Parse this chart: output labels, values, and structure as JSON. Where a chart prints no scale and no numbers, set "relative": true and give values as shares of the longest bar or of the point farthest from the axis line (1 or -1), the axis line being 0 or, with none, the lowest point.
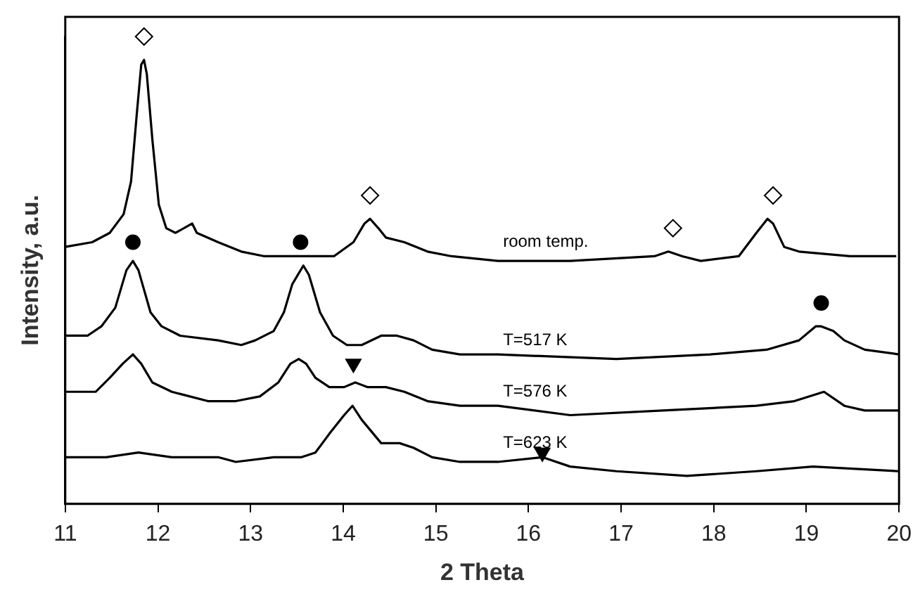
{
  "chart_data": {
    "type": "line",
    "xlabel": "2 Theta",
    "ylabel": "Intensity, a.u.",
    "relative": true,
    "xlim": [
      11,
      20
    ],
    "xticks": [
      11,
      12,
      13,
      14,
      15,
      16,
      17,
      18,
      19,
      20
    ],
    "legend": false,
    "marker": "none",
    "line_style": "solid",
    "series": [
      {
        "name": "room temp.",
        "color": "#000000",
        "x": [
          11.0,
          11.29,
          11.48,
          11.63,
          11.71,
          11.77,
          11.82,
          11.85,
          11.88,
          11.94,
          12.01,
          12.09,
          12.19,
          12.37,
          12.42,
          12.65,
          12.9,
          13.15,
          13.55,
          13.9,
          14.11,
          14.23,
          14.29,
          14.38,
          14.46,
          14.66,
          14.91,
          15.17,
          15.67,
          16.45,
          17.36,
          17.51,
          17.66,
          17.86,
          18.27,
          18.46,
          18.58,
          18.64,
          18.76,
          18.92,
          19.47,
          19.97
        ],
        "values": [
          0.55,
          0.56,
          0.58,
          0.62,
          0.69,
          0.83,
          0.94,
          0.95,
          0.92,
          0.78,
          0.64,
          0.59,
          0.58,
          0.6,
          0.58,
          0.56,
          0.54,
          0.53,
          0.53,
          0.53,
          0.56,
          0.6,
          0.61,
          0.59,
          0.57,
          0.56,
          0.54,
          0.53,
          0.52,
          0.52,
          0.53,
          0.54,
          0.53,
          0.52,
          0.53,
          0.58,
          0.61,
          0.6,
          0.55,
          0.54,
          0.53,
          0.53
        ]
      },
      {
        "name": "T=517 K",
        "color": "#000000",
        "x": [
          11.0,
          11.24,
          11.39,
          11.54,
          11.66,
          11.73,
          11.79,
          11.92,
          12.04,
          12.24,
          12.65,
          12.9,
          13.05,
          13.25,
          13.36,
          13.45,
          13.57,
          13.63,
          13.75,
          13.89,
          14.04,
          14.2,
          14.41,
          14.58,
          14.76,
          14.96,
          15.26,
          15.67,
          16.95,
          17.96,
          18.57,
          18.92,
          19.1,
          19.16,
          19.29,
          19.41,
          19.63,
          20.0
        ],
        "values": [
          0.36,
          0.36,
          0.38,
          0.42,
          0.5,
          0.52,
          0.5,
          0.41,
          0.38,
          0.36,
          0.35,
          0.34,
          0.35,
          0.37,
          0.41,
          0.47,
          0.51,
          0.49,
          0.41,
          0.36,
          0.34,
          0.34,
          0.36,
          0.36,
          0.35,
          0.33,
          0.32,
          0.32,
          0.31,
          0.32,
          0.33,
          0.35,
          0.38,
          0.38,
          0.37,
          0.35,
          0.33,
          0.32
        ]
      },
      {
        "name": "T=576 K",
        "color": "#000000",
        "x": [
          11.0,
          11.33,
          11.48,
          11.62,
          11.73,
          11.82,
          11.94,
          12.15,
          12.54,
          12.84,
          13.1,
          13.3,
          13.43,
          13.52,
          13.6,
          13.7,
          13.85,
          14.01,
          14.13,
          14.26,
          14.46,
          14.66,
          14.91,
          15.26,
          15.67,
          16.45,
          17.45,
          18.46,
          18.87,
          19.19,
          19.41,
          19.63,
          20.0
        ],
        "values": [
          0.24,
          0.24,
          0.27,
          0.3,
          0.32,
          0.3,
          0.26,
          0.24,
          0.22,
          0.22,
          0.23,
          0.26,
          0.3,
          0.31,
          0.3,
          0.27,
          0.25,
          0.25,
          0.26,
          0.25,
          0.25,
          0.24,
          0.22,
          0.21,
          0.21,
          0.19,
          0.2,
          0.21,
          0.22,
          0.24,
          0.21,
          0.2,
          0.2
        ]
      },
      {
        "name": "T=623 K",
        "color": "#000000",
        "x": [
          11.0,
          11.44,
          11.79,
          12.15,
          12.65,
          12.84,
          13.25,
          13.55,
          13.7,
          13.85,
          14.01,
          14.1,
          14.2,
          14.41,
          14.61,
          14.76,
          14.96,
          15.26,
          15.67,
          16.15,
          16.45,
          16.95,
          17.71,
          18.46,
          19.07,
          20.0
        ],
        "values": [
          0.1,
          0.1,
          0.11,
          0.1,
          0.1,
          0.09,
          0.1,
          0.1,
          0.11,
          0.15,
          0.19,
          0.21,
          0.18,
          0.13,
          0.13,
          0.12,
          0.1,
          0.09,
          0.09,
          0.1,
          0.08,
          0.07,
          0.06,
          0.07,
          0.08,
          0.07
        ]
      },
      {
        "type": "scatter",
        "marker": "diamond",
        "color": "#000000",
        "x": [
          11.85,
          14.29,
          17.56,
          18.64
        ],
        "values": [
          1.0,
          0.66,
          0.59,
          0.66
        ]
      },
      {
        "type": "scatter",
        "marker": "circle",
        "color": "#000000",
        "x": [
          11.73,
          13.54,
          19.16
        ],
        "values": [
          0.56,
          0.56,
          0.43
        ]
      },
      {
        "type": "scatter",
        "marker": "triangle",
        "color": "#000000",
        "x": [
          14.11,
          16.15
        ],
        "values": [
          0.3,
          0.11
        ]
      }
    ]
  }
}
